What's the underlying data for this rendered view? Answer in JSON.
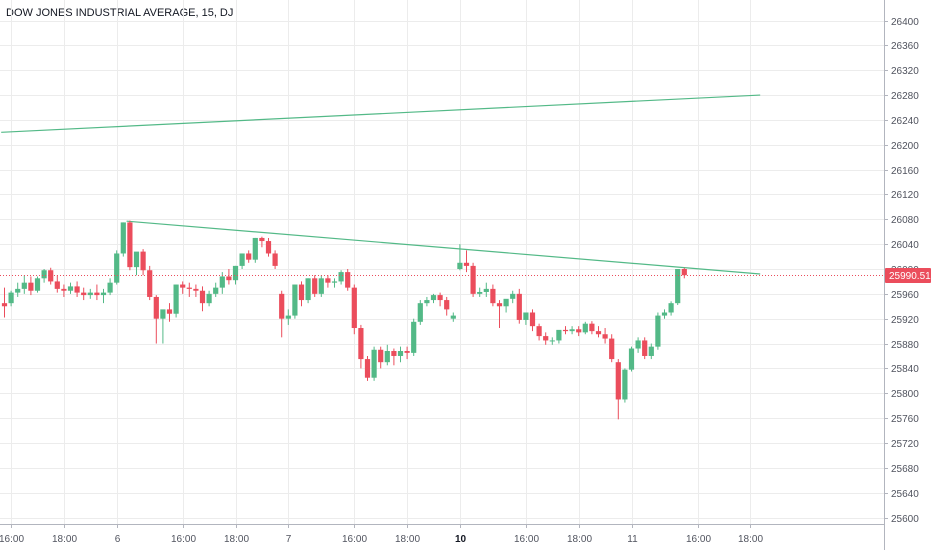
{
  "title": "DOW JONES INDUSTRIAL AVERAGE, 15, DJ",
  "price_label": "25990.51",
  "colors": {
    "up": "#53b987",
    "down": "#eb4d5c",
    "trendline": "#53b987",
    "price_line": "#eb4d5c",
    "grid": "#ececec",
    "text": "#50535e"
  },
  "chart_data": {
    "type": "candlestick",
    "title": "DOW JONES INDUSTRIAL AVERAGE, 15, DJ",
    "ylim": [
      25580,
      26420
    ],
    "y_ticks": [
      25600,
      25640,
      25680,
      25720,
      25760,
      25800,
      25840,
      25880,
      25920,
      25960,
      26000,
      26040,
      26080,
      26120,
      26160,
      26200,
      26240,
      26280,
      26320,
      26360,
      26400
    ],
    "x_ticks": [
      {
        "label": "16:00",
        "bar": 1,
        "bold": false
      },
      {
        "label": "18:00",
        "bar": 9,
        "bold": false
      },
      {
        "label": "6",
        "bar": 17,
        "bold": false
      },
      {
        "label": "16:00",
        "bar": 27,
        "bold": false
      },
      {
        "label": "18:00",
        "bar": 35,
        "bold": false
      },
      {
        "label": "7",
        "bar": 43,
        "bold": false
      },
      {
        "label": "16:00",
        "bar": 53,
        "bold": false
      },
      {
        "label": "18:00",
        "bar": 61,
        "bold": false
      },
      {
        "label": "10",
        "bar": 69,
        "bold": true
      },
      {
        "label": "16:00",
        "bar": 79,
        "bold": false
      },
      {
        "label": "18:00",
        "bar": 87,
        "bold": false
      },
      {
        "label": "11",
        "bar": 95,
        "bold": false
      },
      {
        "label": "16:00",
        "bar": 105,
        "bold": false
      },
      {
        "label": "18:00",
        "bar": 113,
        "bold": false
      }
    ],
    "last_price": 25990.51,
    "trendlines": [
      {
        "bar1": -0.5,
        "price1": 26220,
        "bar2": 114.5,
        "price2": 26280
      },
      {
        "bar1": 18.5,
        "price1": 26077,
        "bar2": 114.5,
        "price2": 25992
      }
    ],
    "candles": [
      [
        25945,
        25970,
        25940,
        25922
      ],
      [
        25945,
        25965,
        25962,
        25940
      ],
      [
        25962,
        25978,
        25968,
        25955
      ],
      [
        25968,
        25990,
        25978,
        25960
      ],
      [
        25978,
        25988,
        25965,
        25958
      ],
      [
        25965,
        25988,
        25985,
        25962
      ],
      [
        25985,
        26000,
        25998,
        25978
      ],
      [
        25998,
        26002,
        25980,
        25975
      ],
      [
        25980,
        25990,
        25968,
        25962
      ],
      [
        25968,
        25975,
        25965,
        25955
      ],
      [
        25965,
        25978,
        25972,
        25960
      ],
      [
        25972,
        25980,
        25962,
        25955
      ],
      [
        25962,
        25970,
        25958,
        25950
      ],
      [
        25958,
        25968,
        25962,
        25952
      ],
      [
        25962,
        25975,
        25958,
        25950
      ],
      [
        25958,
        25968,
        25962,
        25945
      ],
      [
        25962,
        25985,
        25978,
        25958
      ],
      [
        25978,
        26030,
        26025,
        25975
      ],
      [
        26025,
        26075,
        26075,
        26020
      ],
      [
        26075,
        26078,
        26003,
        25998
      ],
      [
        26003,
        26015,
        26028,
        25990
      ],
      [
        26028,
        26032,
        25998,
        25990
      ],
      [
        25998,
        26005,
        25955,
        25950
      ],
      [
        25955,
        25958,
        25920,
        25880
      ],
      [
        25920,
        25930,
        25935,
        25880
      ],
      [
        25935,
        25945,
        25928,
        25915
      ],
      [
        25928,
        25975,
        25975,
        25922
      ],
      [
        25975,
        25980,
        25970,
        25960
      ],
      [
        25970,
        25978,
        25968,
        25955
      ],
      [
        25968,
        25975,
        25965,
        25955
      ],
      [
        25965,
        25972,
        25945,
        25932
      ],
      [
        25945,
        25965,
        25960,
        25940
      ],
      [
        25960,
        25978,
        25970,
        25955
      ],
      [
        25970,
        25995,
        25988,
        25960
      ],
      [
        25988,
        26000,
        25982,
        25975
      ],
      [
        25982,
        26005,
        26005,
        25975
      ],
      [
        26005,
        26025,
        26025,
        26000
      ],
      [
        26025,
        26030,
        26015,
        26010
      ],
      [
        26015,
        26050,
        26050,
        26010
      ],
      [
        26050,
        26052,
        26045,
        26035
      ],
      [
        26045,
        26050,
        26025,
        26020
      ],
      [
        26025,
        26030,
        26005,
        26000
      ],
      [
        25960,
        25965,
        25920,
        25890
      ],
      [
        25920,
        25935,
        25925,
        25910
      ],
      [
        25925,
        25975,
        25975,
        25920
      ],
      [
        25975,
        25980,
        25950,
        25940
      ],
      [
        25950,
        25985,
        25985,
        25945
      ],
      [
        25985,
        25990,
        25960,
        25955
      ],
      [
        25960,
        25990,
        25985,
        25955
      ],
      [
        25985,
        25990,
        25978,
        25970
      ],
      [
        25978,
        25985,
        25980,
        25970
      ],
      [
        25980,
        25998,
        25995,
        25975
      ],
      [
        25995,
        26000,
        25970,
        25965
      ],
      [
        25970,
        25975,
        25905,
        25895
      ],
      [
        25905,
        25910,
        25855,
        25840
      ],
      [
        25855,
        25860,
        25825,
        25820
      ],
      [
        25825,
        25875,
        25870,
        25820
      ],
      [
        25870,
        25875,
        25850,
        25840
      ],
      [
        25850,
        25878,
        25868,
        25845
      ],
      [
        25868,
        25872,
        25860,
        25845
      ],
      [
        25860,
        25875,
        25868,
        25850
      ],
      [
        25868,
        25875,
        25865,
        25855
      ],
      [
        25865,
        25920,
        25915,
        25860
      ],
      [
        25915,
        25950,
        25945,
        25910
      ],
      [
        25945,
        25955,
        25950,
        25940
      ],
      [
        25950,
        25960,
        25958,
        25945
      ],
      [
        25958,
        25962,
        25950,
        25940
      ],
      [
        25950,
        25955,
        25935,
        25925
      ],
      [
        25920,
        25930,
        25925,
        25915
      ],
      [
        26000,
        26040,
        26010,
        25998
      ],
      [
        26010,
        26030,
        26005,
        25995
      ],
      [
        26005,
        26010,
        25960,
        25955
      ],
      [
        25960,
        25970,
        25963,
        25955
      ],
      [
        25963,
        25978,
        25968,
        25955
      ],
      [
        25968,
        25975,
        25945,
        25940
      ],
      [
        25945,
        25950,
        25940,
        25905
      ],
      [
        25940,
        25950,
        25952,
        25930
      ],
      [
        25952,
        25965,
        25960,
        25945
      ],
      [
        25960,
        25968,
        25918,
        25912
      ],
      [
        25918,
        25925,
        25930,
        25910
      ],
      [
        25930,
        25935,
        25908,
        25900
      ],
      [
        25908,
        25912,
        25892,
        25885
      ],
      [
        25892,
        25898,
        25885,
        25878
      ],
      [
        25885,
        25890,
        25885,
        25878
      ],
      [
        25885,
        25895,
        25902,
        25880
      ],
      [
        25902,
        25908,
        25900,
        25895
      ],
      [
        25900,
        25908,
        25903,
        25895
      ],
      [
        25903,
        25908,
        25898,
        25892
      ],
      [
        25898,
        25915,
        25912,
        25895
      ],
      [
        25912,
        25916,
        25900,
        25895
      ],
      [
        25900,
        25908,
        25895,
        25890
      ],
      [
        25895,
        25905,
        25888,
        25880
      ],
      [
        25888,
        25895,
        25855,
        25850
      ],
      [
        25850,
        25855,
        25790,
        25758
      ],
      [
        25790,
        25840,
        25838,
        25785
      ],
      [
        25838,
        25875,
        25872,
        25835
      ],
      [
        25872,
        25890,
        25885,
        25865
      ],
      [
        25885,
        25890,
        25860,
        25855
      ],
      [
        25860,
        25880,
        25875,
        25855
      ],
      [
        25875,
        25930,
        25925,
        25870
      ],
      [
        25925,
        25935,
        25930,
        25920
      ],
      [
        25930,
        25948,
        25945,
        25925
      ],
      [
        25945,
        26000,
        26000,
        25942
      ],
      [
        26000,
        26002,
        25990,
        25985
      ]
    ],
    "first_bar_index": 0
  }
}
